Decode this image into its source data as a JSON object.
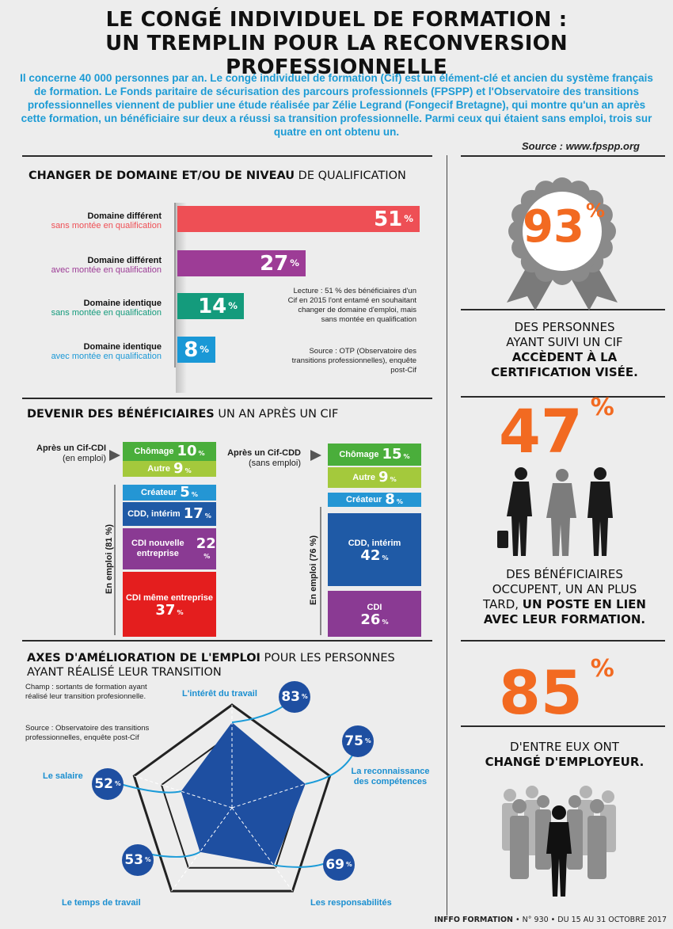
{
  "title": {
    "line1": "LE CONGÉ INDIVIDUEL DE FORMATION :",
    "line2": "UN TREMPLIN POUR LA RECONVERSION PROFESSIONNELLE"
  },
  "intro": "Il concerne 40 000 personnes par an. Le congé individuel de formation (Cif) est un élément-clé et ancien du système français de formation. Le Fonds paritaire de sécurisation des parcours professionnels (FPSPP) et l'Observatoire des transitions professionnelles viennent de publier une étude réalisée par Zélie Legrand (Fongecif Bretagne), qui montre qu'un an après cette formation, un bénéficiaire sur deux a réussi sa transition professionnelle. Parmi ceux qui étaient sans emploi, trois sur quatre en ont obtenu un.",
  "source_top": "Source : www.fpspp.org",
  "section1": {
    "title_bold": "CHANGER DE DOMAINE ET/OU DE NIVEAU",
    "title_rest": " DE QUALIFICATION",
    "reading_note": "Lecture : 51 % des bénéficiaires d'un Cif en 2015 l'ont entamé en souhaitant changer de domaine d'emploi, mais sans montée en qualification",
    "source_note": "Source : OTP (Observatoire des transitions professionnelles), enquête post-Cif"
  },
  "chart_data": {
    "type": "bar",
    "orientation": "horizontal",
    "unit": "%",
    "xlim": [
      0,
      51
    ],
    "categories": [
      {
        "line1": "Domaine différent",
        "line2": "sans montée en qualification",
        "color": "#ee4f55"
      },
      {
        "line1": "Domaine différent",
        "line2": "avec montée en qualification",
        "color": "#9d3c96"
      },
      {
        "line1": "Domaine identique",
        "line2": "sans montée en qualification",
        "color": "#149b7c"
      },
      {
        "line1": "Domaine identique",
        "line2": "avec montée en qualification",
        "color": "#1a98d6"
      }
    ],
    "values": [
      51,
      27,
      14,
      8
    ]
  },
  "section2": {
    "title_bold": "DEVENIR DES BÉNÉFICIAIRES",
    "title_rest": " UN AN APRÈS UN CIF",
    "left": {
      "label1": "Après un Cif-CDI",
      "label2": "(en emploi)",
      "employed_label": "En emploi (81 %)",
      "items": [
        {
          "label": "Chômage",
          "value": "10",
          "color": "#4aae3b"
        },
        {
          "label": "Autre",
          "value": "9",
          "color": "#a4c93c"
        },
        {
          "label": "Créateur",
          "value": "5",
          "color": "#2496d4"
        },
        {
          "label": "CDD, intérim",
          "value": "17",
          "color": "#1f5aa6"
        },
        {
          "label": "CDI nouvelle entreprise",
          "value": "22",
          "color": "#8a3a93"
        },
        {
          "label": "CDI même entreprise",
          "value": "37",
          "color": "#e41e1e"
        }
      ]
    },
    "right": {
      "label1": "Après un Cif-CDD",
      "label2": "(sans emploi)",
      "employed_label": "En emploi (76 %)",
      "items": [
        {
          "label": "Chômage",
          "value": "15",
          "color": "#4aae3b"
        },
        {
          "label": "Autre",
          "value": "9",
          "color": "#a4c93c"
        },
        {
          "label": "Créateur",
          "value": "8",
          "color": "#2496d4"
        },
        {
          "label": "CDD, intérim",
          "value": "42",
          "color": "#1f5aa6"
        },
        {
          "label": "CDI",
          "value": "26",
          "color": "#8a3a93"
        }
      ]
    }
  },
  "section3": {
    "title_bold": "AXES D'AMÉLIORATION DE L'EMPLOI",
    "title_rest": " POUR LES PERSONNES",
    "title_line2": "AYANT RÉALISÉ LEUR TRANSITION",
    "champ_note": "Champ : sortants de formation ayant réalisé leur transition profesionnelle.",
    "source_note": "Source : Observatoire des transitions professionnelles, enquête post-Cif",
    "axes": [
      {
        "label": "L'intérêt du travail",
        "value": 83
      },
      {
        "label": "La reconnaissance des compétences",
        "value": 75
      },
      {
        "label": "Les responsabilités",
        "value": 69
      },
      {
        "label": "Le temps de travail",
        "value": 53
      },
      {
        "label": "Le salaire",
        "value": 52
      }
    ]
  },
  "sidebar": {
    "stat1": {
      "value": "93",
      "text1": "DES PERSONNES",
      "text2": "AYANT SUIVI UN CIF",
      "text3": "ACCÈDENT À LA",
      "text4": "CERTIFICATION VISÉE."
    },
    "stat2": {
      "value": "47",
      "text1": "DES BÉNÉFICIAIRES",
      "text2": "OCCUPENT, UN AN PLUS",
      "text3a": "TARD, ",
      "text3b": "UN POSTE EN LIEN",
      "text4": "AVEC LEUR FORMATION."
    },
    "stat3": {
      "value": "85",
      "text1": "D'ENTRE EUX ONT",
      "text2": "CHANGÉ D'EMPLOYEUR."
    }
  },
  "colors": {
    "accent_blue": "#1c9bd5",
    "orange": "#f26a21",
    "rosette": "#8a8a8a"
  },
  "footer": {
    "brand1": "INFFO",
    "brand2": "FORMATION",
    "issue": " • N° 930 • DU 15 AU 31 OCTOBRE 2017"
  }
}
